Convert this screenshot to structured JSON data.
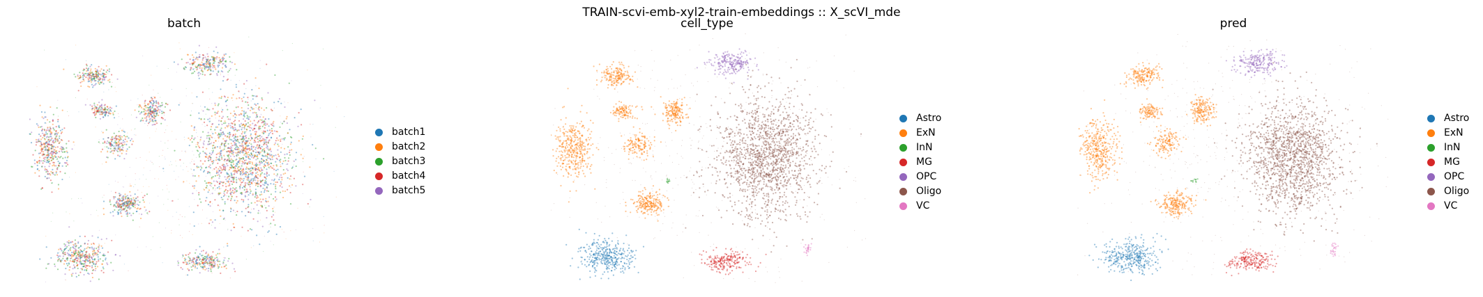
{
  "suptitle": "TRAIN-scvi-emb-xyl2-train-embeddings :: X_scVI_mde",
  "chart_data": [
    {
      "type": "scatter",
      "title": "batch",
      "xlabel": "",
      "ylabel": "",
      "axes_visible": false,
      "legend_position": "right",
      "legend": [
        {
          "label": "batch1",
          "color": "#1f77b4"
        },
        {
          "label": "batch2",
          "color": "#ff7f0e"
        },
        {
          "label": "batch3",
          "color": "#2ca02c"
        },
        {
          "label": "batch4",
          "color": "#d62728"
        },
        {
          "label": "batch5",
          "color": "#9467bd"
        }
      ],
      "color_mode": "mixed",
      "clusters": [
        {
          "cx": 0.68,
          "cy": 0.49,
          "sx": 0.15,
          "sy": 0.23,
          "n": 1500
        },
        {
          "cx": 0.07,
          "cy": 0.46,
          "sx": 0.055,
          "sy": 0.12,
          "n": 380
        },
        {
          "cx": 0.31,
          "cy": 0.68,
          "sx": 0.05,
          "sy": 0.045,
          "n": 220
        },
        {
          "cx": 0.21,
          "cy": 0.17,
          "sx": 0.05,
          "sy": 0.04,
          "n": 180
        },
        {
          "cx": 0.57,
          "cy": 0.12,
          "sx": 0.07,
          "sy": 0.045,
          "n": 220
        },
        {
          "cx": 0.39,
          "cy": 0.31,
          "sx": 0.04,
          "sy": 0.05,
          "n": 180
        },
        {
          "cx": 0.17,
          "cy": 0.89,
          "sx": 0.085,
          "sy": 0.065,
          "n": 360
        },
        {
          "cx": 0.55,
          "cy": 0.91,
          "sx": 0.07,
          "sy": 0.04,
          "n": 220
        },
        {
          "cx": 0.28,
          "cy": 0.44,
          "sx": 0.045,
          "sy": 0.05,
          "n": 140
        },
        {
          "cx": 0.23,
          "cy": 0.31,
          "sx": 0.035,
          "sy": 0.03,
          "n": 110
        }
      ]
    },
    {
      "type": "scatter",
      "title": "cell_type",
      "xlabel": "",
      "ylabel": "",
      "axes_visible": false,
      "legend_position": "right",
      "legend": [
        {
          "label": "Astro",
          "color": "#1f77b4"
        },
        {
          "label": "ExN",
          "color": "#ff7f0e"
        },
        {
          "label": "InN",
          "color": "#2ca02c"
        },
        {
          "label": "MG",
          "color": "#d62728"
        },
        {
          "label": "OPC",
          "color": "#9467bd"
        },
        {
          "label": "Oligo",
          "color": "#8c564b"
        },
        {
          "label": "VC",
          "color": "#e377c2"
        }
      ],
      "color_mode": "by_cluster",
      "clusters": [
        {
          "label": "Oligo",
          "cx": 0.68,
          "cy": 0.49,
          "sx": 0.15,
          "sy": 0.23,
          "n": 1500
        },
        {
          "label": "ExN",
          "cx": 0.07,
          "cy": 0.46,
          "sx": 0.055,
          "sy": 0.12,
          "n": 380
        },
        {
          "label": "ExN",
          "cx": 0.31,
          "cy": 0.68,
          "sx": 0.05,
          "sy": 0.045,
          "n": 220
        },
        {
          "label": "ExN",
          "cx": 0.21,
          "cy": 0.17,
          "sx": 0.05,
          "sy": 0.04,
          "n": 180
        },
        {
          "label": "OPC",
          "cx": 0.57,
          "cy": 0.12,
          "sx": 0.07,
          "sy": 0.045,
          "n": 220
        },
        {
          "label": "ExN",
          "cx": 0.39,
          "cy": 0.31,
          "sx": 0.04,
          "sy": 0.05,
          "n": 180
        },
        {
          "label": "Astro",
          "cx": 0.17,
          "cy": 0.89,
          "sx": 0.085,
          "sy": 0.065,
          "n": 360
        },
        {
          "label": "MG",
          "cx": 0.55,
          "cy": 0.91,
          "sx": 0.07,
          "sy": 0.04,
          "n": 220
        },
        {
          "label": "ExN",
          "cx": 0.28,
          "cy": 0.44,
          "sx": 0.045,
          "sy": 0.05,
          "n": 140
        },
        {
          "label": "ExN",
          "cx": 0.23,
          "cy": 0.31,
          "sx": 0.035,
          "sy": 0.03,
          "n": 110
        },
        {
          "label": "VC",
          "cx": 0.81,
          "cy": 0.86,
          "sx": 0.01,
          "sy": 0.03,
          "n": 25
        },
        {
          "label": "InN",
          "cx": 0.37,
          "cy": 0.59,
          "sx": 0.01,
          "sy": 0.01,
          "n": 10
        }
      ]
    },
    {
      "type": "scatter",
      "title": "pred",
      "xlabel": "",
      "ylabel": "",
      "axes_visible": false,
      "legend_position": "right",
      "legend": [
        {
          "label": "Astro",
          "color": "#1f77b4"
        },
        {
          "label": "ExN",
          "color": "#ff7f0e"
        },
        {
          "label": "InN",
          "color": "#2ca02c"
        },
        {
          "label": "MG",
          "color": "#d62728"
        },
        {
          "label": "OPC",
          "color": "#9467bd"
        },
        {
          "label": "Oligo",
          "color": "#8c564b"
        },
        {
          "label": "VC",
          "color": "#e377c2"
        }
      ],
      "color_mode": "by_cluster",
      "clusters": [
        {
          "label": "Oligo",
          "cx": 0.68,
          "cy": 0.49,
          "sx": 0.15,
          "sy": 0.23,
          "n": 1500
        },
        {
          "label": "ExN",
          "cx": 0.07,
          "cy": 0.46,
          "sx": 0.055,
          "sy": 0.12,
          "n": 380
        },
        {
          "label": "ExN",
          "cx": 0.31,
          "cy": 0.68,
          "sx": 0.05,
          "sy": 0.045,
          "n": 220
        },
        {
          "label": "ExN",
          "cx": 0.21,
          "cy": 0.17,
          "sx": 0.05,
          "sy": 0.04,
          "n": 180
        },
        {
          "label": "OPC",
          "cx": 0.57,
          "cy": 0.12,
          "sx": 0.07,
          "sy": 0.045,
          "n": 220
        },
        {
          "label": "ExN",
          "cx": 0.39,
          "cy": 0.31,
          "sx": 0.04,
          "sy": 0.05,
          "n": 180
        },
        {
          "label": "Astro",
          "cx": 0.17,
          "cy": 0.89,
          "sx": 0.085,
          "sy": 0.065,
          "n": 360
        },
        {
          "label": "MG",
          "cx": 0.55,
          "cy": 0.91,
          "sx": 0.07,
          "sy": 0.04,
          "n": 220
        },
        {
          "label": "ExN",
          "cx": 0.28,
          "cy": 0.44,
          "sx": 0.045,
          "sy": 0.05,
          "n": 140
        },
        {
          "label": "ExN",
          "cx": 0.23,
          "cy": 0.31,
          "sx": 0.035,
          "sy": 0.03,
          "n": 110
        },
        {
          "label": "VC",
          "cx": 0.81,
          "cy": 0.86,
          "sx": 0.01,
          "sy": 0.03,
          "n": 25
        },
        {
          "label": "InN",
          "cx": 0.37,
          "cy": 0.59,
          "sx": 0.01,
          "sy": 0.01,
          "n": 10
        }
      ]
    }
  ]
}
